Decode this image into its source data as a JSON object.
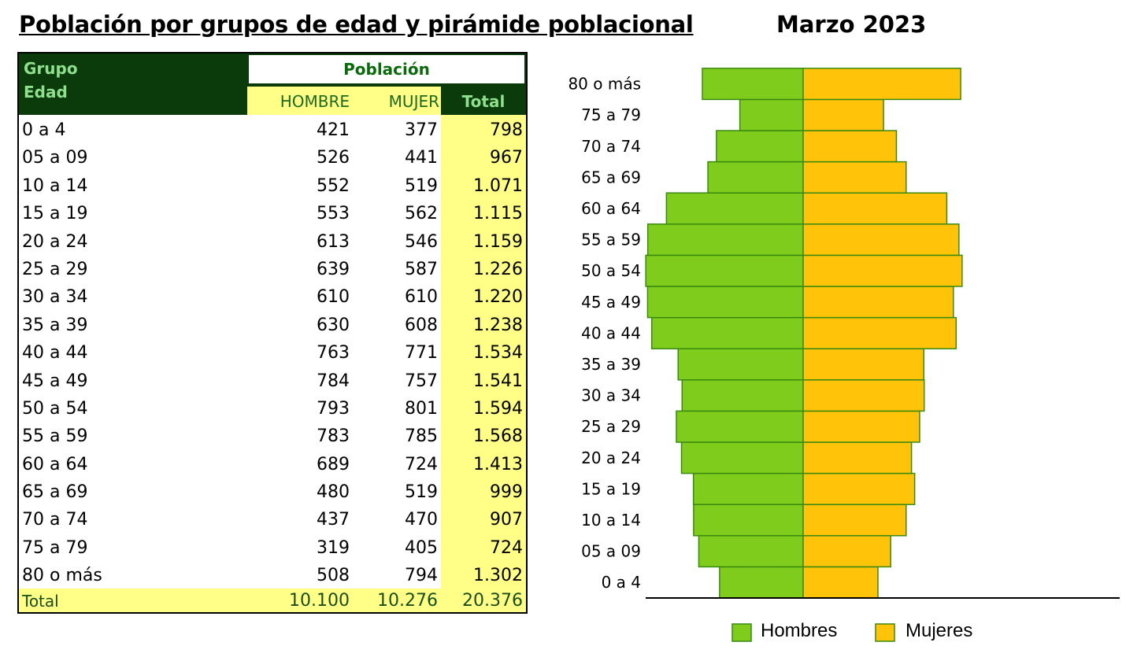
{
  "title": "Población por grupos de edad y pirámide poblacional",
  "date": "Marzo 2023",
  "table": {
    "header_group": "Grupo Edad",
    "header_poblacion": "Población",
    "header_hombre": "HOMBRE",
    "header_mujer": "MUJER",
    "header_total": "Total",
    "rows": [
      {
        "group": "0 a 4",
        "hombre": "421",
        "mujer": "377",
        "total": "798"
      },
      {
        "group": "05 a 09",
        "hombre": "526",
        "mujer": "441",
        "total": "967"
      },
      {
        "group": "10 a 14",
        "hombre": "552",
        "mujer": "519",
        "total": "1.071"
      },
      {
        "group": "15 a 19",
        "hombre": "553",
        "mujer": "562",
        "total": "1.115"
      },
      {
        "group": "20 a 24",
        "hombre": "613",
        "mujer": "546",
        "total": "1.159"
      },
      {
        "group": "25 a 29",
        "hombre": "639",
        "mujer": "587",
        "total": "1.226"
      },
      {
        "group": "30 a 34",
        "hombre": "610",
        "mujer": "610",
        "total": "1.220"
      },
      {
        "group": "35 a 39",
        "hombre": "630",
        "mujer": "608",
        "total": "1.238"
      },
      {
        "group": "40 a 44",
        "hombre": "763",
        "mujer": "771",
        "total": "1.534"
      },
      {
        "group": "45 a 49",
        "hombre": "784",
        "mujer": "757",
        "total": "1.541"
      },
      {
        "group": "50 a 54",
        "hombre": "793",
        "mujer": "801",
        "total": "1.594"
      },
      {
        "group": "55 a 59",
        "hombre": "783",
        "mujer": "785",
        "total": "1.568"
      },
      {
        "group": "60 a 64",
        "hombre": "689",
        "mujer": "724",
        "total": "1.413"
      },
      {
        "group": "65 a 69",
        "hombre": "480",
        "mujer": "519",
        "total": "999"
      },
      {
        "group": "70 a 74",
        "hombre": "437",
        "mujer": "470",
        "total": "907"
      },
      {
        "group": "75 a 79",
        "hombre": "319",
        "mujer": "405",
        "total": "724"
      },
      {
        "group": "80 o más",
        "hombre": "508",
        "mujer": "794",
        "total": "1.302"
      }
    ],
    "total_row": {
      "group": "Total",
      "hombre": "10.100",
      "mujer": "10.276",
      "total": "20.376"
    }
  },
  "chart_data": {
    "type": "bar",
    "orientation": "horizontal-pyramid",
    "categories": [
      "0 a 4",
      "05 a 09",
      "10 a 14",
      "15 a 19",
      "20 a 24",
      "25 a 29",
      "30 a 34",
      "35 a 39",
      "40 a 44",
      "45 a 49",
      "50 a 54",
      "55 a 59",
      "60 a 64",
      "65 a 69",
      "70 a 74",
      "75 a 79",
      "80 o más"
    ],
    "series": [
      {
        "name": "Hombres",
        "color": "#7fcc1c",
        "values": [
          421,
          526,
          552,
          553,
          613,
          639,
          610,
          630,
          763,
          784,
          793,
          783,
          689,
          480,
          437,
          319,
          508
        ]
      },
      {
        "name": "Mujeres",
        "color": "#ffc30a",
        "values": [
          377,
          441,
          519,
          562,
          546,
          587,
          610,
          608,
          771,
          757,
          801,
          785,
          724,
          519,
          470,
          405,
          794
        ]
      }
    ],
    "legend_position": "bottom",
    "grid": false
  }
}
